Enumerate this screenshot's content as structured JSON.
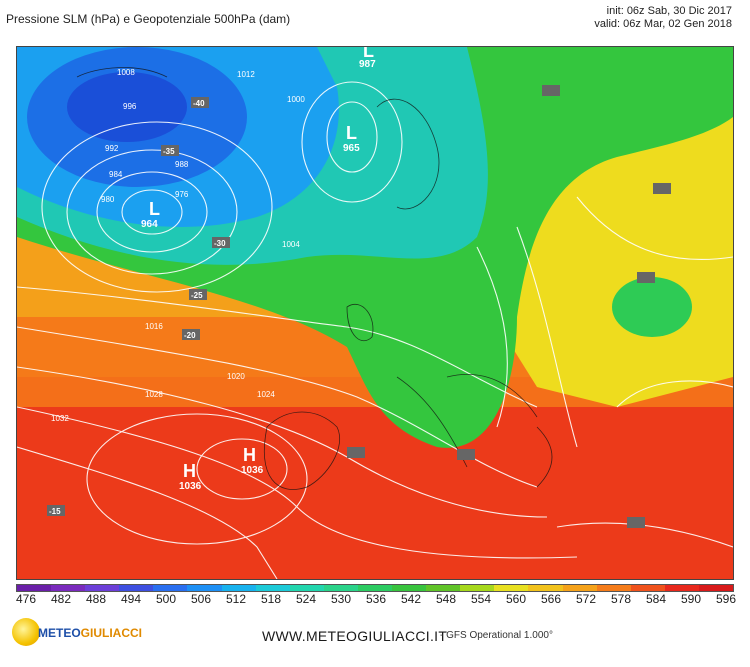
{
  "header": {
    "title": "Pressione SLM (hPa) e Geopotenziale 500hPa (dam)",
    "init": "init: 06z Sab, 30 Dic 2017",
    "valid": "valid: 06z Mar, 02 Gen 2018"
  },
  "map": {
    "lows": [
      {
        "symbol": "L",
        "value": "964"
      },
      {
        "symbol": "L",
        "value": "965"
      },
      {
        "symbol": "L",
        "value": "987"
      }
    ],
    "highs": [
      {
        "symbol": "H",
        "value": "1036"
      },
      {
        "symbol": "H",
        "value": "1036"
      }
    ],
    "isobar_labels": [
      "1008",
      "1012",
      "1000",
      "996",
      "992",
      "988",
      "984",
      "980",
      "976",
      "1004",
      "1016",
      "1020",
      "1024",
      "1028",
      "1032"
    ],
    "temp_labels": [
      "-40",
      "-35",
      "-30",
      "-25",
      "-20",
      "-15"
    ]
  },
  "scale": {
    "values": [
      "476",
      "482",
      "488",
      "494",
      "500",
      "506",
      "512",
      "518",
      "524",
      "530",
      "536",
      "542",
      "548",
      "554",
      "560",
      "566",
      "572",
      "578",
      "584",
      "590",
      "596"
    ],
    "colors": [
      "#6a1fa8",
      "#7a2bbd",
      "#6c3fd8",
      "#3e4fe0",
      "#2a6ff0",
      "#1e90f5",
      "#18b2ee",
      "#1ccad8",
      "#22d6ae",
      "#2ad38a",
      "#2ccc62",
      "#38c43e",
      "#60c428",
      "#a6d81c",
      "#e8e020",
      "#f2c21c",
      "#f5a21a",
      "#f57c1a",
      "#f0521c",
      "#e8281c",
      "#d81a1a"
    ]
  },
  "footer": {
    "site": "WWW.METEOGIULIACCI.IT",
    "model": "- GFS Operational 1.000°",
    "logo_a": "METEO",
    "logo_b": "GIULIACCI"
  }
}
